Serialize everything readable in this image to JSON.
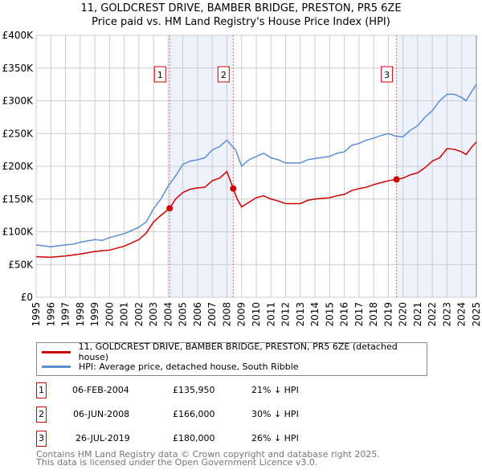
{
  "title": "11, GOLDCREST DRIVE, BAMBER BRIDGE, PRESTON, PR5 6ZE",
  "subtitle": "Price paid vs. HM Land Registry's House Price Index (HPI)",
  "chart_data": {
    "type": "line",
    "title": "11, GOLDCREST DRIVE, BAMBER BRIDGE, PRESTON, PR5 6ZE",
    "subtitle": "Price paid vs. HM Land Registry's House Price Index (HPI)",
    "xlim": [
      1995,
      2025
    ],
    "ylim": [
      0,
      400000
    ],
    "yticks": [
      0,
      50000,
      100000,
      150000,
      200000,
      250000,
      300000,
      350000,
      400000
    ],
    "ytick_labels": [
      "£0",
      "£50K",
      "£100K",
      "£150K",
      "£200K",
      "£250K",
      "£300K",
      "£350K",
      "£400K"
    ],
    "xticks": [
      "1995",
      "1996",
      "1997",
      "1998",
      "1999",
      "2000",
      "2001",
      "2002",
      "2003",
      "2004",
      "2005",
      "2006",
      "2007",
      "2008",
      "2009",
      "2010",
      "2011",
      "2012",
      "2013",
      "2014",
      "2015",
      "2016",
      "2017",
      "2018",
      "2019",
      "2020",
      "2021",
      "2022",
      "2023",
      "2024",
      "2025"
    ],
    "grid": true,
    "series": [
      {
        "name": "11, GOLDCREST DRIVE, BAMBER BRIDGE, PRESTON, PR5 6ZE (detached house)",
        "color": "#cc0000",
        "x": [
          1995,
          1996,
          1997,
          1998,
          1999,
          2000,
          2001,
          2002,
          2002.5,
          2003,
          2003.5,
          2004.1,
          2004.5,
          2005,
          2005.5,
          2006,
          2006.5,
          2007,
          2007.5,
          2008,
          2008.43,
          2008.7,
          2009,
          2009.5,
          2010,
          2010.5,
          2011,
          2011.5,
          2012,
          2013,
          2013.5,
          2014,
          2015,
          2015.5,
          2016,
          2016.5,
          2017,
          2017.5,
          2018,
          2018.5,
          2019,
          2019.56,
          2020,
          2020.5,
          2021,
          2021.5,
          2022,
          2022.5,
          2023,
          2023.5,
          2024,
          2024.3,
          2024.7,
          2025
        ],
        "y": [
          62000,
          61000,
          63000,
          66000,
          70000,
          72000,
          78000,
          88000,
          98000,
          115000,
          125000,
          135950,
          150000,
          160000,
          165000,
          167000,
          168000,
          178000,
          182000,
          192000,
          166000,
          150000,
          138000,
          145000,
          152000,
          155000,
          150000,
          147000,
          143000,
          143000,
          148000,
          150000,
          152000,
          155000,
          157000,
          163000,
          166000,
          168000,
          172000,
          175000,
          178000,
          180000,
          182000,
          187000,
          190000,
          198000,
          208000,
          213000,
          227000,
          226000,
          222000,
          218000,
          230000,
          237000
        ]
      },
      {
        "name": "HPI: Average price, detached house, South Ribble",
        "color": "#5b8fd4",
        "x": [
          1995,
          1996,
          1997,
          1997.5,
          1998,
          1999,
          1999.5,
          2000,
          2001,
          2002,
          2002.5,
          2003,
          2003.5,
          2004,
          2004.5,
          2005,
          2005.5,
          2006,
          2006.5,
          2007,
          2007.5,
          2008,
          2008.3,
          2008.6,
          2009,
          2009.5,
          2010,
          2010.5,
          2011,
          2011.5,
          2012,
          2013,
          2013.5,
          2014,
          2015,
          2015.5,
          2016,
          2016.5,
          2017,
          2017.5,
          2018,
          2018.5,
          2019,
          2019.5,
          2020,
          2020.5,
          2021,
          2021.5,
          2022,
          2022.5,
          2023,
          2023.5,
          2024,
          2024.3,
          2024.7,
          2025
        ],
        "y": [
          80000,
          77000,
          80000,
          81000,
          84000,
          88000,
          87000,
          91000,
          97000,
          107000,
          115000,
          135000,
          150000,
          170000,
          185000,
          203000,
          208000,
          210000,
          213000,
          225000,
          230000,
          240000,
          232000,
          225000,
          200000,
          210000,
          215000,
          220000,
          213000,
          210000,
          205000,
          205000,
          210000,
          212000,
          215000,
          220000,
          222000,
          232000,
          235000,
          240000,
          243000,
          247000,
          250000,
          246000,
          245000,
          255000,
          262000,
          275000,
          285000,
          300000,
          310000,
          310000,
          305000,
          300000,
          315000,
          325000
        ]
      }
    ],
    "sales": [
      {
        "label": "1",
        "x": 2004.1,
        "price": 135950
      },
      {
        "label": "2",
        "x": 2008.43,
        "price": 166000
      },
      {
        "label": "3",
        "x": 2019.56,
        "price": 180000
      }
    ]
  },
  "legend": [
    {
      "label": "11, GOLDCREST DRIVE, BAMBER BRIDGE, PRESTON, PR5 6ZE (detached house)",
      "color": "#cc0000"
    },
    {
      "label": "HPI: Average price, detached house, South Ribble",
      "color": "#5b8fd4"
    }
  ],
  "transactions": [
    {
      "num": "1",
      "date": "06-FEB-2004",
      "price": "£135,950",
      "delta": "21% ↓ HPI"
    },
    {
      "num": "2",
      "date": "06-JUN-2008",
      "price": "£166,000",
      "delta": "30% ↓ HPI"
    },
    {
      "num": "3",
      "date": "26-JUL-2019",
      "price": "£180,000",
      "delta": "26% ↓ HPI"
    }
  ],
  "footer": [
    "Contains HM Land Registry data © Crown copyright and database right 2025.",
    "This data is licensed under the Open Government Licence v3.0."
  ]
}
